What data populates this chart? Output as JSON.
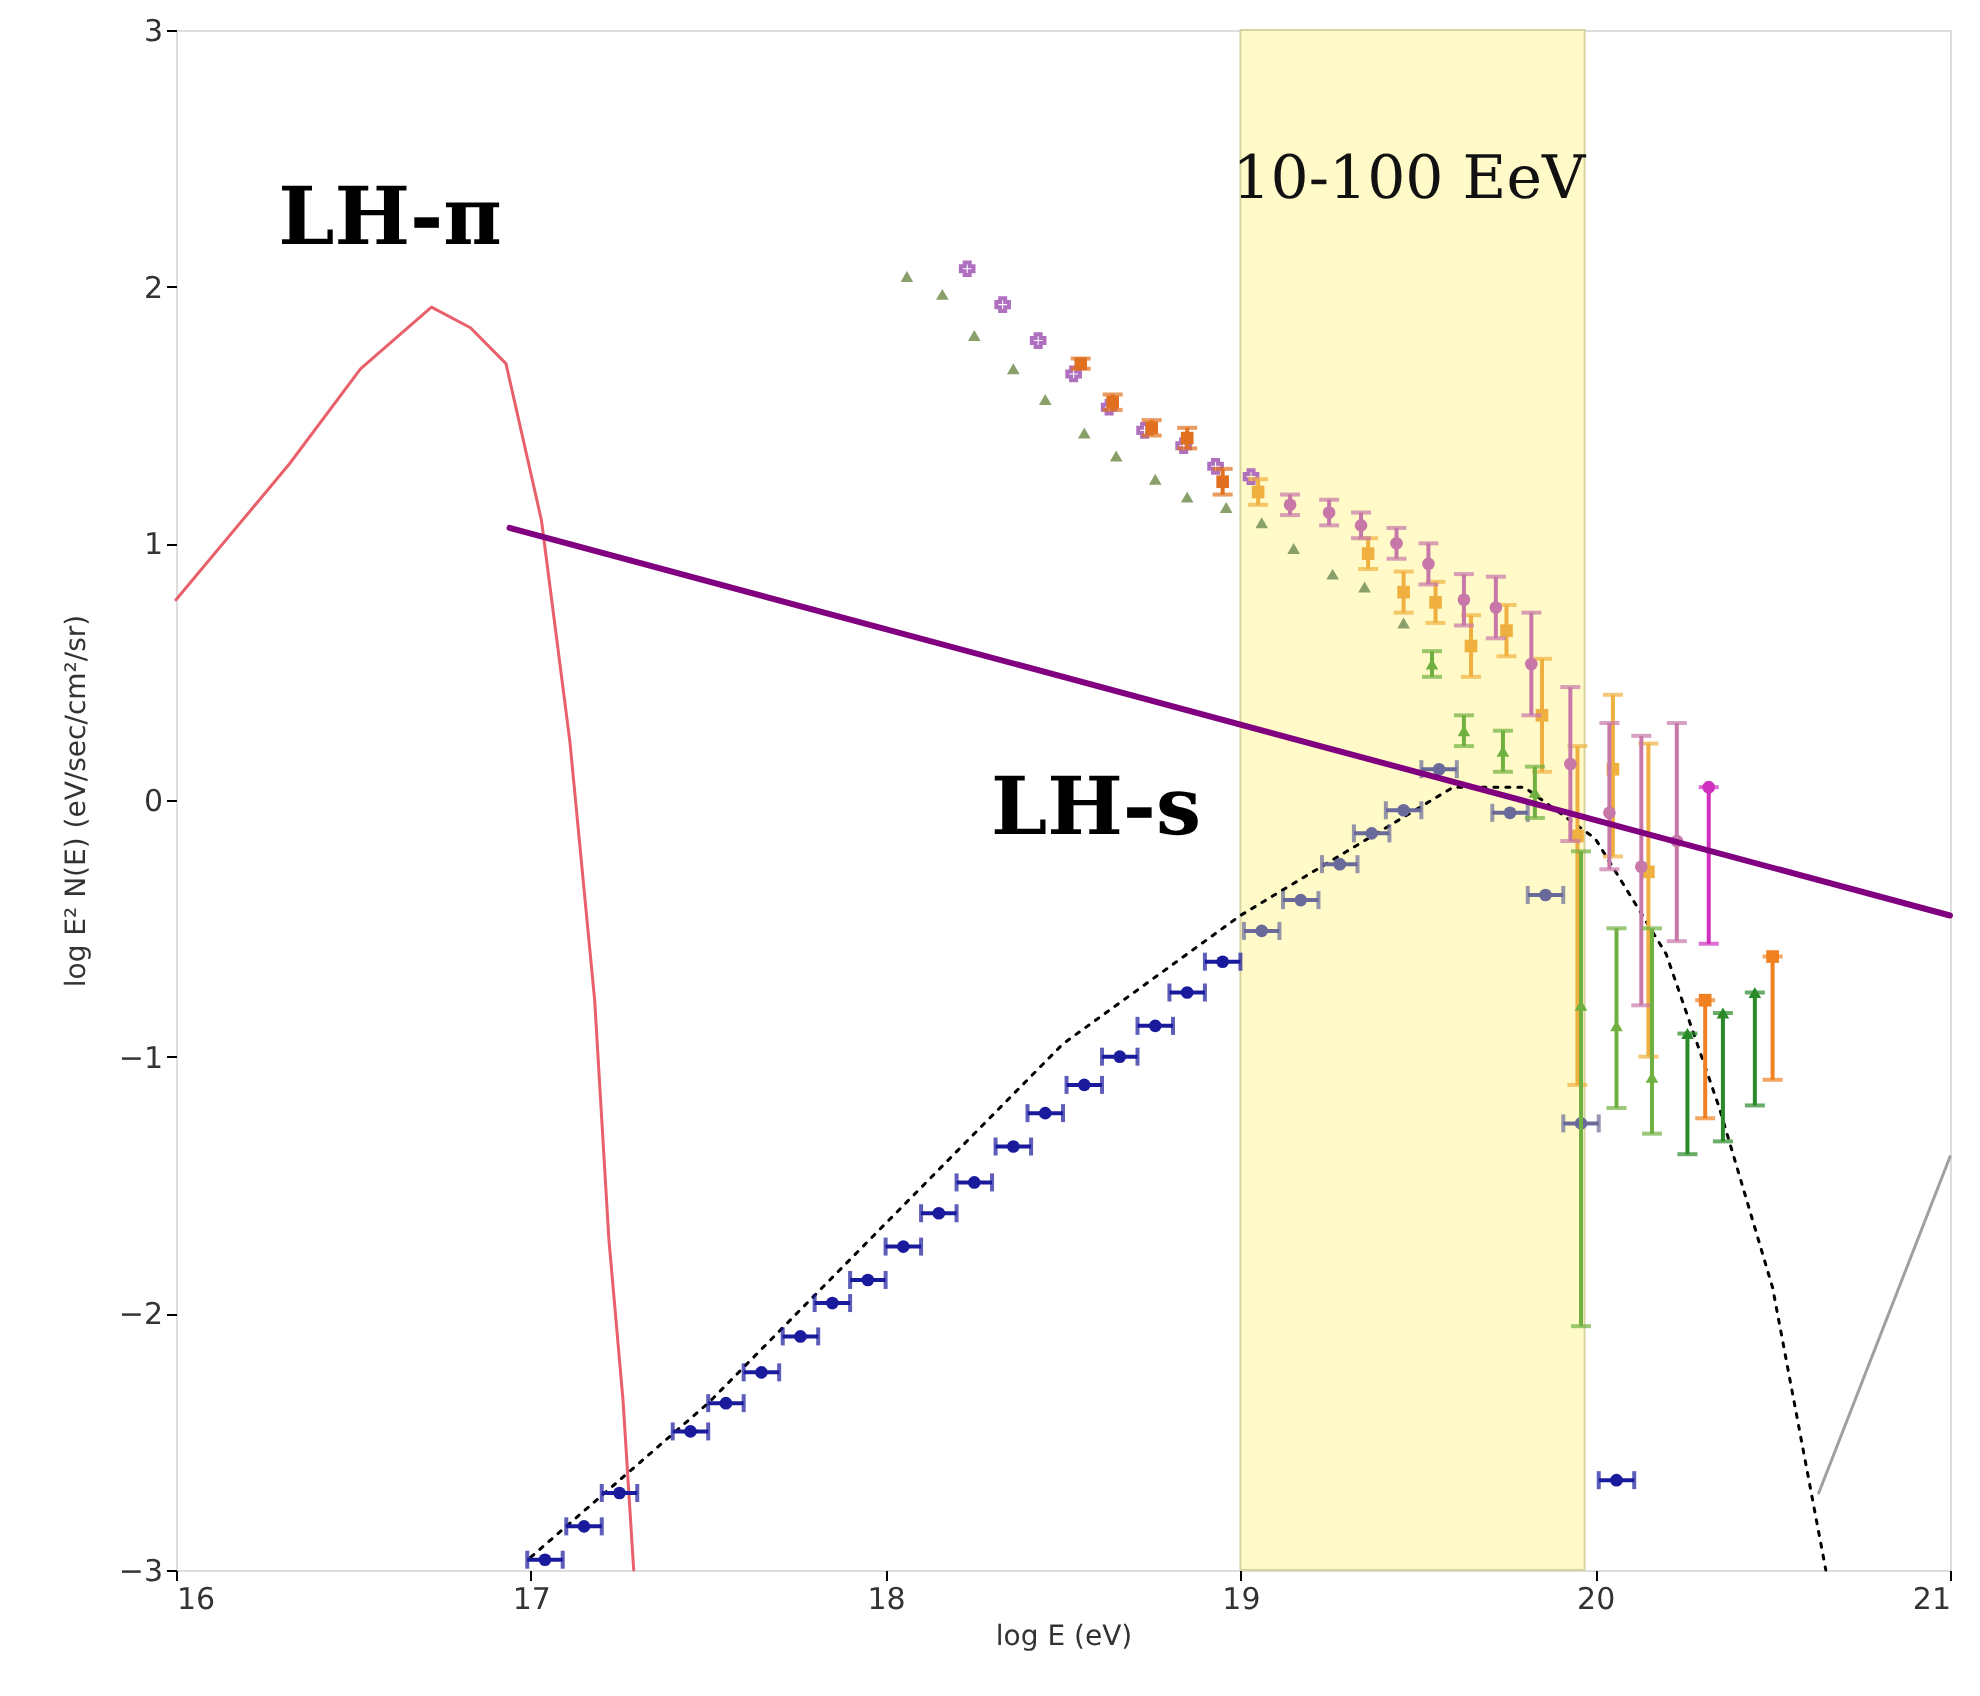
{
  "chart_data": {
    "type": "scatter",
    "xlabel": "log E (eV)",
    "ylabel": "log E² N(E) (eV/sec/cm²/sr)",
    "xlim": [
      16,
      21
    ],
    "ylim": [
      -3,
      3
    ],
    "xticks": [
      16,
      17,
      18,
      19,
      20,
      21
    ],
    "yticks": [
      -3,
      -2,
      -1,
      0,
      1,
      2,
      3
    ],
    "grid": false,
    "bands": [
      {
        "axis": "x",
        "from": 19,
        "to": 19.97,
        "label": "10-100 EeV",
        "color": "#fffac8"
      }
    ],
    "annotations": [
      "LH-π",
      "LH-s"
    ],
    "series": [
      {
        "type": "line",
        "color": "#e8606a",
        "line_style": "solid",
        "marker": "none",
        "x": [
          16,
          16.32,
          16.52,
          16.72,
          16.83,
          16.93,
          17.03,
          17.11,
          17.18,
          17.22,
          17.26,
          17.29
        ],
        "values": [
          0.78,
          1.31,
          1.68,
          1.92,
          1.84,
          1.7,
          1.09,
          0.23,
          -0.78,
          -1.71,
          -2.34,
          -3
        ]
      },
      {
        "type": "line",
        "color": "#000000",
        "line_style": "dotted",
        "marker": "none",
        "x": [
          17.0,
          17.5,
          18.0,
          18.5,
          19.0,
          19.3,
          19.6,
          19.8,
          20.0,
          20.2,
          20.35,
          20.5,
          20.65
        ],
        "values": [
          -2.95,
          -2.35,
          -1.65,
          -0.95,
          -0.45,
          -0.2,
          0.05,
          0.05,
          -0.15,
          -0.6,
          -1.2,
          -1.9,
          -3
        ]
      },
      {
        "type": "line",
        "color": "#a0a0a0",
        "line_style": "solid",
        "marker": "none",
        "x": [
          20.63,
          21
        ],
        "values": [
          -2.7,
          -1.39
        ]
      },
      {
        "color": "#1a1a9c",
        "marker": "circle",
        "x": [
          17.04,
          17.15,
          17.25,
          17.45,
          17.55,
          17.65,
          17.76,
          17.85,
          17.95,
          18.05,
          18.15,
          18.25,
          18.36,
          18.45,
          18.56,
          18.66,
          18.76,
          18.85,
          18.95,
          20.06
        ],
        "values": [
          -2.96,
          -2.83,
          -2.7,
          -2.46,
          -2.35,
          -2.23,
          -2.09,
          -1.96,
          -1.87,
          -1.74,
          -1.61,
          -1.49,
          -1.35,
          -1.22,
          -1.11,
          -1.0,
          -0.88,
          -0.75,
          -0.63,
          -2.65
        ],
        "xerrors": [
          0.05,
          0.05,
          0.05,
          0.05,
          0.05,
          0.05,
          0.05,
          0.05,
          0.05,
          0.05,
          0.05,
          0.05,
          0.05,
          0.05,
          0.05,
          0.05,
          0.05,
          0.05,
          0.05,
          0.05
        ]
      },
      {
        "color": "#6a6a9a",
        "marker": "circle",
        "x": [
          19.06,
          19.17,
          19.28,
          19.37,
          19.46,
          19.56,
          19.76,
          19.86,
          19.96
        ],
        "values": [
          -0.51,
          -0.39,
          -0.25,
          -0.13,
          -0.04,
          0.12,
          -0.05,
          -0.37,
          -1.26
        ],
        "xerrors": [
          0.05,
          0.05,
          0.05,
          0.05,
          0.05,
          0.05,
          0.05,
          0.05,
          0.05
        ]
      },
      {
        "color": "#8aa06a",
        "marker": "triangle",
        "x": [
          18.06,
          18.16,
          18.25,
          18.36,
          18.45,
          18.56,
          18.65,
          18.76,
          18.85,
          18.96,
          19.06,
          19.15,
          19.26,
          19.35,
          19.46
        ],
        "values": [
          2.04,
          1.97,
          1.81,
          1.68,
          1.56,
          1.43,
          1.34,
          1.25,
          1.18,
          1.14,
          1.08,
          0.98,
          0.88,
          0.83,
          0.69
        ]
      },
      {
        "color": "#b070c0",
        "marker": "cross",
        "x": [
          18.23,
          18.33,
          18.43,
          18.53,
          18.63,
          18.73,
          18.84,
          18.93,
          19.03
        ],
        "values": [
          2.07,
          1.93,
          1.79,
          1.66,
          1.53,
          1.44,
          1.38,
          1.3,
          1.26
        ]
      },
      {
        "color": "#e07020",
        "marker": "square",
        "x": [
          18.55,
          18.64,
          18.75,
          18.85,
          18.95
        ],
        "values": [
          1.7,
          1.55,
          1.45,
          1.41,
          1.24
        ],
        "errors": [
          0.02,
          0.03,
          0.03,
          0.04,
          0.05
        ]
      },
      {
        "color": "#f0b040",
        "marker": "square",
        "x": [
          19.05,
          19.36,
          19.46,
          19.55,
          19.65,
          19.75,
          19.85,
          19.95,
          20.05,
          20.15
        ],
        "values": [
          1.2,
          0.96,
          0.81,
          0.77,
          0.6,
          0.66,
          0.33,
          -0.14,
          0.12,
          -0.28
        ],
        "errors": [
          0.05,
          0.06,
          0.08,
          0.08,
          0.12,
          0.1,
          0.22,
          [
            -1.11,
            0.21
          ],
          [
            -0.22,
            0.41
          ],
          [
            -1.0,
            0.22
          ]
        ]
      },
      {
        "color": "#c878a8",
        "marker": "circle",
        "x": [
          19.14,
          19.25,
          19.34,
          19.44,
          19.53,
          19.63,
          19.72,
          19.82,
          19.93,
          20.04,
          20.13,
          20.23
        ],
        "values": [
          1.15,
          1.12,
          1.07,
          1.0,
          0.92,
          0.78,
          0.75,
          0.53,
          0.14,
          -0.05,
          -0.26,
          -0.16
        ],
        "errors": [
          0.04,
          0.05,
          0.05,
          0.06,
          0.08,
          0.1,
          0.12,
          0.2,
          0.3,
          [
            -0.27,
            0.3
          ],
          [
            -0.8,
            0.25
          ],
          [
            -0.55,
            0.3
          ]
        ]
      },
      {
        "color": "#70b040",
        "marker": "triangle",
        "x": [
          19.54,
          19.63,
          19.74,
          19.83,
          19.96,
          20.06,
          20.16
        ],
        "values": [
          0.53,
          0.27,
          0.19,
          0.03,
          -0.8,
          -0.88,
          -1.08
        ],
        "errors": [
          0.05,
          0.06,
          0.08,
          0.1,
          [
            -2.05,
            -0.2
          ],
          [
            -1.2,
            -0.5
          ],
          [
            -1.3,
            -0.5
          ]
        ]
      },
      {
        "color": "#2a8a2a",
        "marker": "triangle",
        "x": [
          20.26,
          20.36,
          20.45
        ],
        "values": [
          -0.91,
          -0.83,
          -0.75
        ],
        "errors": [
          [
            -1.38,
            -0.91
          ],
          [
            -1.33,
            -0.83
          ],
          [
            -1.19,
            -0.75
          ]
        ]
      },
      {
        "color": "#f08020",
        "marker": "square",
        "x": [
          20.31,
          20.5
        ],
        "values": [
          -0.78,
          -0.61
        ],
        "errors": [
          [
            -1.24,
            -0.78
          ],
          [
            -1.09,
            -0.61
          ]
        ]
      },
      {
        "color": "#d030c0",
        "marker": "circle",
        "x": [
          20.32
        ],
        "values": [
          0.05
        ],
        "errors": [
          [
            -0.56,
            0.05
          ]
        ]
      },
      {
        "type": "line",
        "color": "#800080",
        "line_style": "solid",
        "marker": "none",
        "x": [
          16.94,
          21
        ],
        "values": [
          1.06,
          -0.45
        ]
      }
    ]
  }
}
